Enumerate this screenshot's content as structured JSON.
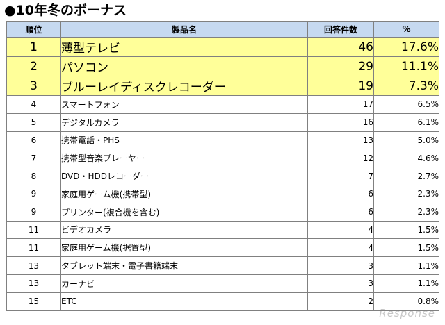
{
  "title": "●10年冬のボーナス",
  "table": {
    "headers": {
      "rank": "順位",
      "product": "製品名",
      "count": "回答件数",
      "percent": "%"
    },
    "rows": [
      {
        "rank": "1",
        "product": "薄型テレビ",
        "count": "46",
        "percent": "17.6%"
      },
      {
        "rank": "2",
        "product": "パソコン",
        "count": "29",
        "percent": "11.1%"
      },
      {
        "rank": "3",
        "product": "ブルーレイディスクレコーダー",
        "count": "19",
        "percent": "7.3%"
      },
      {
        "rank": "4",
        "product": "スマートフォン",
        "count": "17",
        "percent": "6.5%"
      },
      {
        "rank": "5",
        "product": "デジタルカメラ",
        "count": "16",
        "percent": "6.1%"
      },
      {
        "rank": "6",
        "product": "携帯電話・PHS",
        "count": "13",
        "percent": "5.0%"
      },
      {
        "rank": "7",
        "product": "携帯型音楽プレーヤー",
        "count": "12",
        "percent": "4.6%"
      },
      {
        "rank": "8",
        "product": "DVD・HDDレコーダー",
        "count": "7",
        "percent": "2.7%"
      },
      {
        "rank": "9",
        "product": "家庭用ゲーム機(携帯型)",
        "count": "6",
        "percent": "2.3%"
      },
      {
        "rank": "9",
        "product": "プリンター(複合機を含む)",
        "count": "6",
        "percent": "2.3%"
      },
      {
        "rank": "11",
        "product": "ビデオカメラ",
        "count": "4",
        "percent": "1.5%"
      },
      {
        "rank": "11",
        "product": "家庭用ゲーム機(据置型)",
        "count": "4",
        "percent": "1.5%"
      },
      {
        "rank": "13",
        "product": "タブレット端末・電子書籍端末",
        "count": "3",
        "percent": "1.1%"
      },
      {
        "rank": "13",
        "product": "カーナビ",
        "count": "3",
        "percent": "1.1%"
      },
      {
        "rank": "15",
        "product": "ETC",
        "count": "2",
        "percent": "0.8%"
      }
    ]
  },
  "colors": {
    "header_bg": "#c6d9f0",
    "highlight_bg": "#ffff99",
    "border": "#808080"
  },
  "watermark": "Response"
}
